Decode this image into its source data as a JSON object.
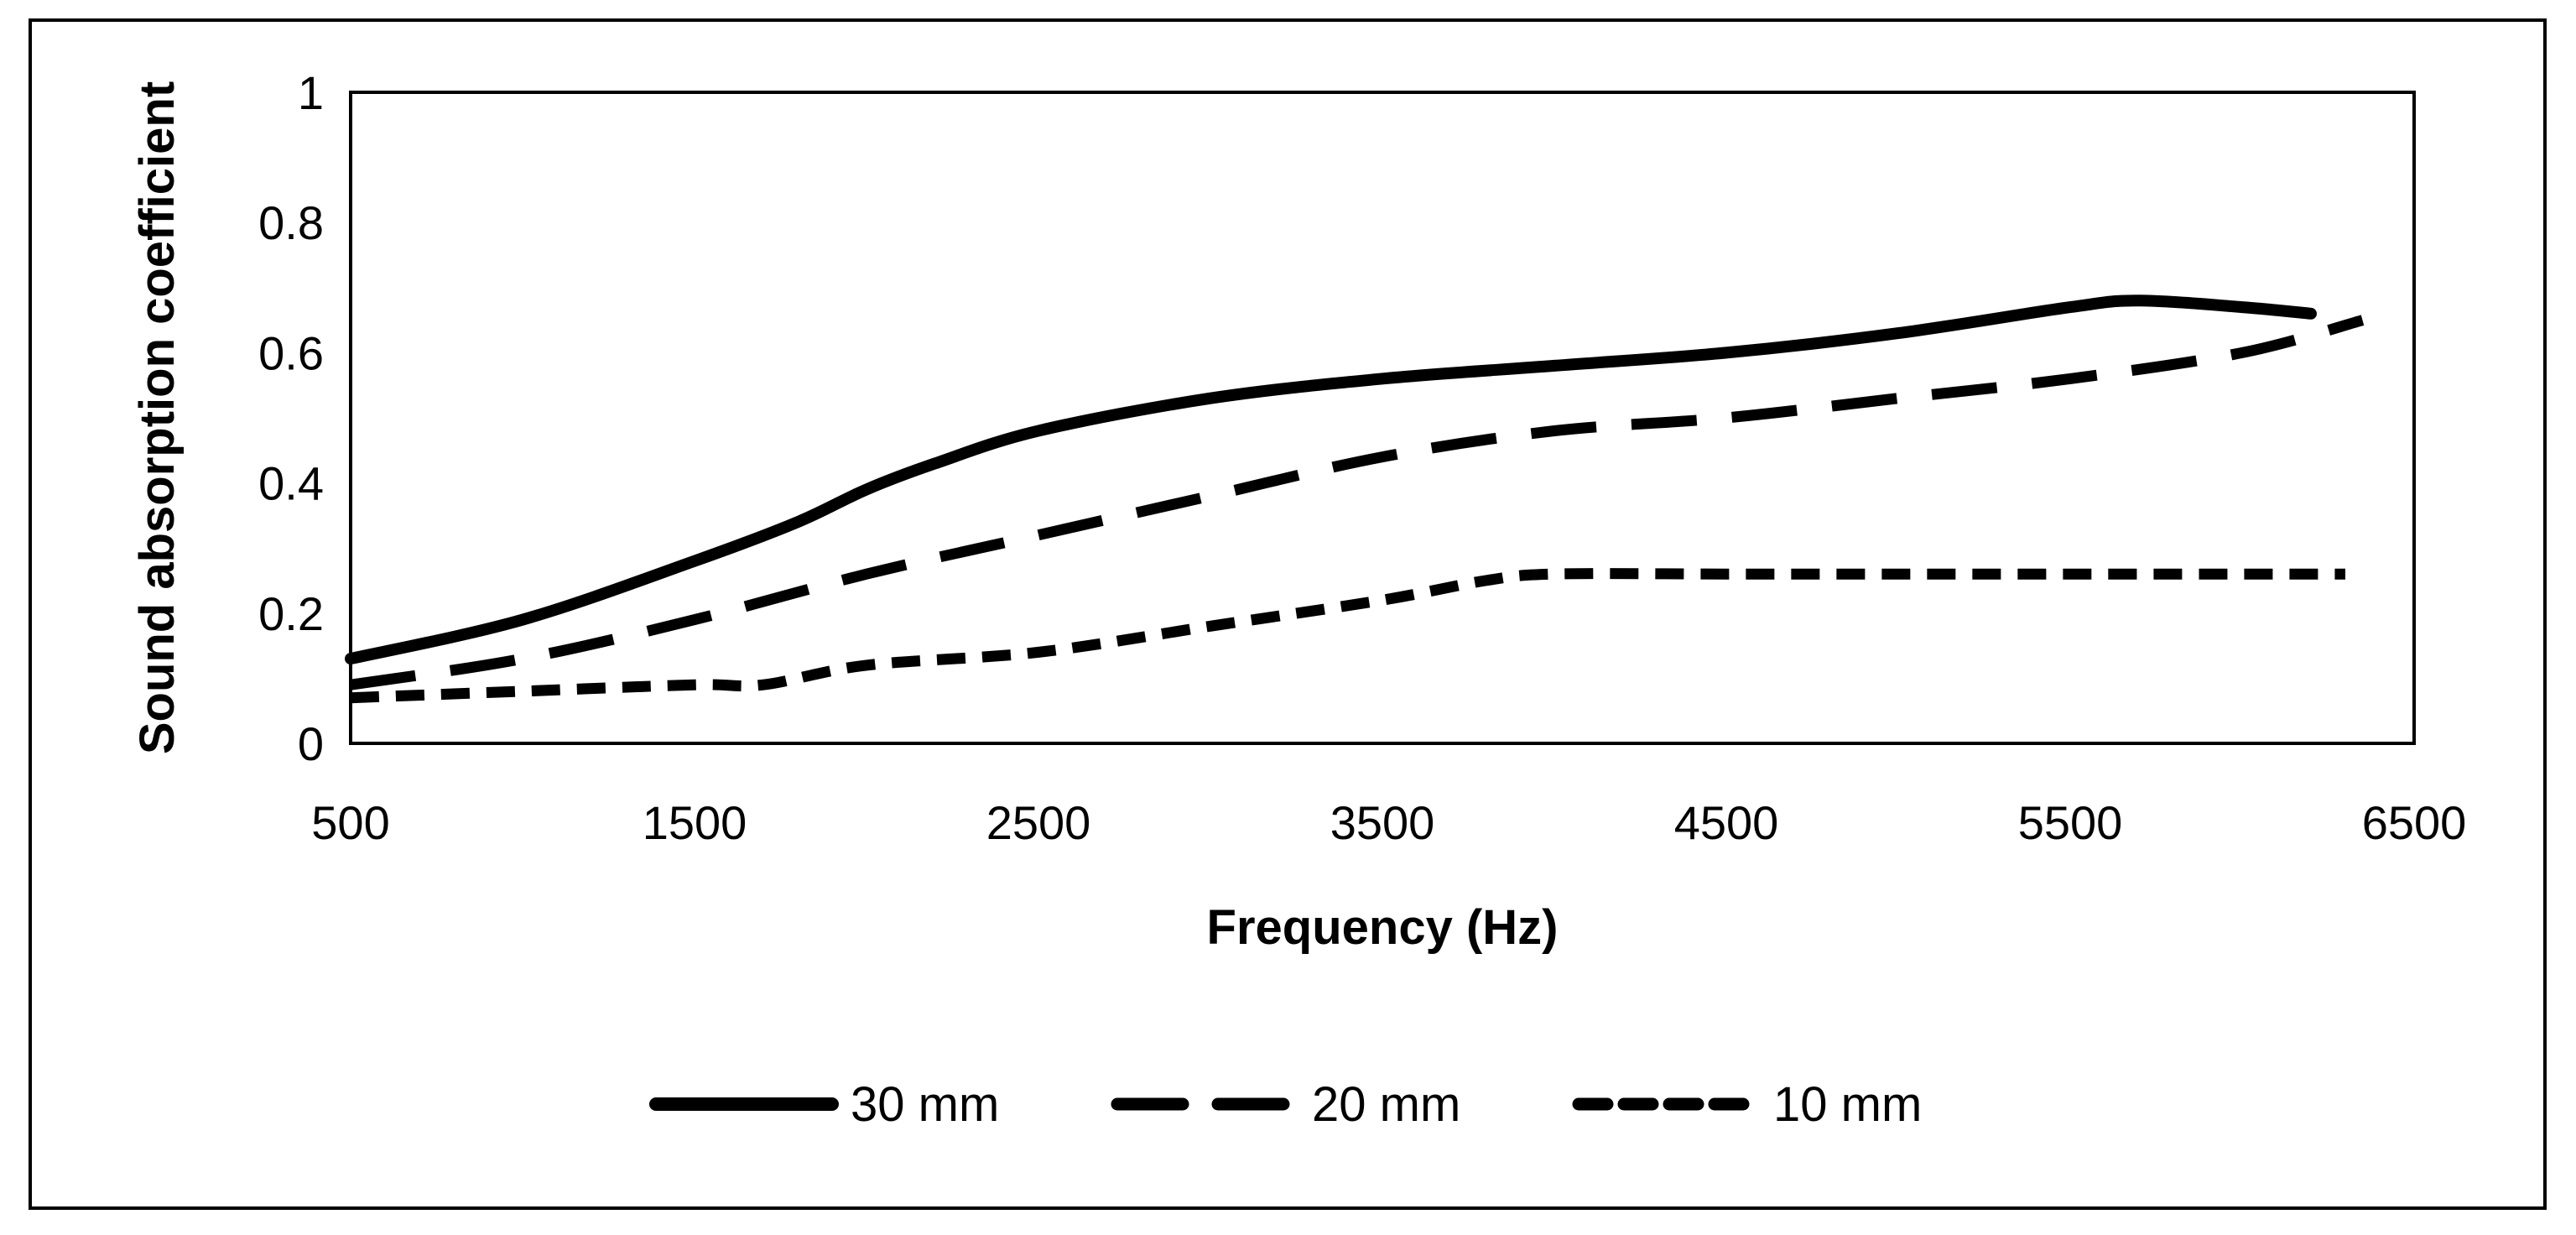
{
  "chart_data": {
    "type": "line",
    "title": "",
    "xlabel": "Frequency (Hz)",
    "ylabel": "Sound absorption coefficient",
    "xlim": [
      500,
      6500
    ],
    "ylim": [
      0,
      1
    ],
    "xticks": [
      500,
      1500,
      2500,
      3500,
      4500,
      5500,
      6500
    ],
    "yticks": [
      0,
      0.2,
      0.4,
      0.6,
      0.8,
      1
    ],
    "xtick_labels": [
      "500",
      "1500",
      "2500",
      "3500",
      "4500",
      "5500",
      "6500"
    ],
    "ytick_labels": [
      "0",
      "0.2",
      "0.4",
      "0.6",
      "0.8",
      "1"
    ],
    "grid": false,
    "legend_position": "bottom",
    "series": [
      {
        "name": "30 mm",
        "style": "solid",
        "color": "#000000",
        "x": [
          500,
          1000,
          1500,
          1800,
          2000,
          2200,
          2500,
          3000,
          3500,
          4000,
          4500,
          5000,
          5500,
          5700,
          6000,
          6200
        ],
        "y": [
          0.13,
          0.19,
          0.28,
          0.34,
          0.39,
          0.43,
          0.48,
          0.53,
          0.56,
          0.58,
          0.6,
          0.63,
          0.67,
          0.68,
          0.67,
          0.66
        ]
      },
      {
        "name": "20 mm",
        "style": "long-dash",
        "color": "#000000",
        "x": [
          500,
          1000,
          1500,
          2000,
          2500,
          3000,
          3500,
          4000,
          4500,
          5000,
          5500,
          6000,
          6350
        ],
        "y": [
          0.09,
          0.13,
          0.19,
          0.26,
          0.32,
          0.38,
          0.44,
          0.48,
          0.5,
          0.53,
          0.56,
          0.6,
          0.65
        ]
      },
      {
        "name": "10 mm",
        "style": "short-dash",
        "color": "#000000",
        "x": [
          500,
          1000,
          1500,
          1700,
          2000,
          2500,
          3000,
          3500,
          3800,
          4000,
          4500,
          5000,
          5500,
          6000,
          6300
        ],
        "y": [
          0.07,
          0.08,
          0.09,
          0.09,
          0.12,
          0.14,
          0.18,
          0.22,
          0.25,
          0.26,
          0.26,
          0.26,
          0.26,
          0.26,
          0.26
        ]
      }
    ]
  }
}
